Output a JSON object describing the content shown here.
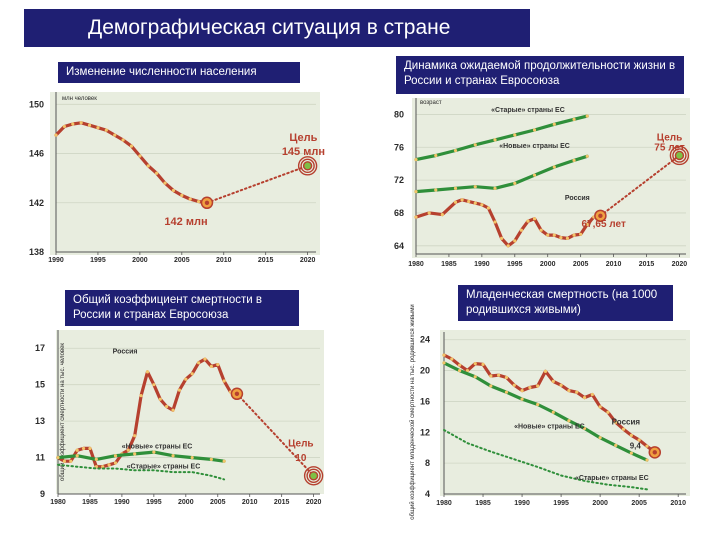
{
  "title": "Демографическая ситуация в стране",
  "colors": {
    "red": "#b6402f",
    "green": "#2f8f3a",
    "navy": "#1f1f73",
    "panel": "#e8eddf",
    "dotted": "#b6402f"
  },
  "chart_data": [
    {
      "type": "line",
      "caption": "Изменение численности населения",
      "ylabel": "млн человек",
      "ylim": [
        138,
        151
      ],
      "y_ticks": [
        "150",
        "146",
        "142",
        "138"
      ],
      "x_ticks": [
        "1990",
        "1995",
        "2000",
        "2005",
        "2010",
        "2015",
        "2020"
      ],
      "xlim": [
        1990,
        2021
      ],
      "series": [
        {
          "color": "red",
          "style": "solid",
          "x": [
            1990,
            1991,
            1992,
            1993,
            1994,
            1995,
            1996,
            1997,
            1998,
            1999,
            2000,
            2001,
            2002,
            2003,
            2004,
            2005,
            2006,
            2007,
            2008
          ],
          "y": [
            147.5,
            148.2,
            148.4,
            148.5,
            148.3,
            148.1,
            147.9,
            147.5,
            147.1,
            146.6,
            145.8,
            145.0,
            144.4,
            143.6,
            143.0,
            142.6,
            142.3,
            142.1,
            142.0
          ]
        },
        {
          "color": "red",
          "style": "dotted",
          "x": [
            2008,
            2020
          ],
          "y": [
            142.0,
            145.0
          ]
        }
      ],
      "annotations": [
        {
          "text": "Цель",
          "x": 2019.5,
          "y": 147.0,
          "size": 11
        },
        {
          "text": "145 млн",
          "x": 2019.5,
          "y": 145.9,
          "size": 11
        },
        {
          "text": "142 млн",
          "x": 2005.5,
          "y": 140.2,
          "size": 11
        }
      ]
    },
    {
      "type": "line",
      "caption": "Динамика ожидаемой продолжительности жизни в России и странах Евросоюза",
      "ylabel": "возраст",
      "ylim": [
        63,
        82
      ],
      "y_ticks": [
        "80",
        "76",
        "72",
        "68",
        "64"
      ],
      "x_ticks": [
        "1980",
        "1985",
        "1990",
        "1995",
        "2000",
        "2005",
        "2010",
        "2015",
        "2020"
      ],
      "xlim": [
        1980,
        2021
      ],
      "series": [
        {
          "name": "«Старые» страны ЕС",
          "color": "green",
          "style": "solid",
          "x": [
            1980,
            1983,
            1986,
            1989,
            1992,
            1995,
            1998,
            2001,
            2004,
            2006
          ],
          "y": [
            74.5,
            75.0,
            75.6,
            76.3,
            76.9,
            77.5,
            78.1,
            78.8,
            79.4,
            79.8
          ]
        },
        {
          "name": "«Новые» страны ЕС",
          "color": "green",
          "style": "solid",
          "x": [
            1980,
            1983,
            1986,
            1989,
            1992,
            1995,
            1998,
            2001,
            2004,
            2006
          ],
          "y": [
            70.6,
            70.8,
            71.0,
            71.2,
            71.0,
            71.6,
            72.6,
            73.6,
            74.4,
            74.9
          ]
        },
        {
          "name": "Россия",
          "color": "red",
          "style": "solid",
          "x": [
            1980,
            1982,
            1984,
            1986,
            1987,
            1988,
            1989,
            1990,
            1991,
            1992,
            1993,
            1994,
            1995,
            1996,
            1997,
            1998,
            1999,
            2000,
            2001,
            2002,
            2003,
            2004,
            2005,
            2006,
            2007,
            2008
          ],
          "y": [
            67.5,
            68.0,
            67.8,
            69.3,
            69.6,
            69.4,
            69.2,
            69.0,
            68.6,
            66.9,
            64.9,
            64.0,
            64.6,
            65.9,
            67.0,
            67.3,
            65.9,
            65.3,
            65.3,
            65.0,
            64.9,
            65.3,
            65.4,
            66.6,
            67.5,
            67.65
          ]
        },
        {
          "color": "red",
          "style": "dotted",
          "x": [
            2008,
            2020
          ],
          "y": [
            67.65,
            75
          ]
        }
      ],
      "annotations": [
        {
          "text": "«Старые» страны ЕС",
          "x": 1997,
          "y": 80.3,
          "size": 7
        },
        {
          "text": "«Новые» страны ЕС",
          "x": 1998,
          "y": 75.9,
          "size": 7
        },
        {
          "text": "Россия",
          "x": 2004.5,
          "y": 69.6,
          "size": 7
        },
        {
          "text": "Цель",
          "x": 2018.5,
          "y": 76.8,
          "size": 10
        },
        {
          "text": "75 лет",
          "x": 2018.5,
          "y": 75.6,
          "size": 10
        },
        {
          "text": "67,65 лет",
          "x": 2008.5,
          "y": 66.3,
          "size": 10
        }
      ]
    },
    {
      "type": "line",
      "caption": "Общий коэффициент смертности в России и странах Евросоюза",
      "ylabel": "общий коэффициент смертности на тыс. человек",
      "ylim": [
        9,
        18
      ],
      "y_ticks": [
        "17",
        "15",
        "13",
        "11",
        "9"
      ],
      "x_ticks": [
        "1980",
        "1985",
        "1990",
        "1995",
        "2000",
        "2005",
        "2010",
        "2015",
        "2020"
      ],
      "xlim": [
        1980,
        2021
      ],
      "series": [
        {
          "name": "Россия",
          "color": "red",
          "style": "solid",
          "x": [
            1980,
            1981,
            1982,
            1983,
            1984,
            1985,
            1986,
            1987,
            1988,
            1989,
            1990,
            1991,
            1992,
            1993,
            1994,
            1995,
            1996,
            1997,
            1998,
            1999,
            2000,
            2001,
            2002,
            2003,
            2004,
            2005,
            2006,
            2007,
            2008
          ],
          "y": [
            11.0,
            10.8,
            10.8,
            11.4,
            11.5,
            11.5,
            10.5,
            10.5,
            10.6,
            10.7,
            11.2,
            11.4,
            12.2,
            14.4,
            15.7,
            15.0,
            14.2,
            13.8,
            13.6,
            14.7,
            15.3,
            15.6,
            16.2,
            16.4,
            16.0,
            16.1,
            15.2,
            14.6,
            14.5
          ]
        },
        {
          "name": "«Новые» страны ЕС",
          "color": "green",
          "style": "solid",
          "x": [
            1980,
            1983,
            1986,
            1989,
            1992,
            1995,
            1998,
            2001,
            2004,
            2006
          ],
          "y": [
            11.0,
            11.1,
            10.9,
            11.1,
            11.2,
            11.3,
            11.1,
            11.0,
            10.9,
            10.8
          ]
        },
        {
          "name": "«Старые» страны ЕС",
          "color": "green",
          "style": "dotted",
          "x": [
            1980,
            1983,
            1986,
            1989,
            1992,
            1995,
            1998,
            2001,
            2004,
            2006
          ],
          "y": [
            10.6,
            10.5,
            10.4,
            10.4,
            10.3,
            10.3,
            10.2,
            10.2,
            10.0,
            9.8
          ]
        },
        {
          "color": "red",
          "style": "dotted",
          "x": [
            2008,
            2020
          ],
          "y": [
            14.5,
            10
          ]
        }
      ],
      "annotations": [
        {
          "text": "Россия",
          "x": 1990.5,
          "y": 16.7,
          "size": 7
        },
        {
          "text": "«Новые» страны ЕС",
          "x": 1995.5,
          "y": 11.5,
          "size": 7
        },
        {
          "text": "«Старые» страны ЕС",
          "x": 1996.5,
          "y": 10.4,
          "size": 7
        },
        {
          "text": "Цель",
          "x": 2018,
          "y": 11.6,
          "size": 10
        },
        {
          "text": "10",
          "x": 2018,
          "y": 10.8,
          "size": 10
        }
      ]
    },
    {
      "type": "line",
      "caption": "Младенческая смертность (на 1000 родившихся живыми)",
      "ylabel": "общий коэффициент младенческой смертности на тыс. родившихся живыми",
      "ylim": [
        4,
        25
      ],
      "y_ticks": [
        "24",
        "20",
        "16",
        "12",
        "8",
        "4"
      ],
      "x_ticks": [
        "1980",
        "1985",
        "1990",
        "1995",
        "2000",
        "2005",
        "2010"
      ],
      "xlim": [
        1980,
        2011
      ],
      "series": [
        {
          "name": "Россия",
          "color": "red",
          "style": "solid",
          "x": [
            1980,
            1981,
            1982,
            1983,
            1984,
            1985,
            1986,
            1987,
            1988,
            1989,
            1990,
            1991,
            1992,
            1993,
            1994,
            1995,
            1996,
            1997,
            1998,
            1999,
            2000,
            2001,
            2002,
            2003,
            2004,
            2005,
            2006,
            2007
          ],
          "y": [
            22.0,
            21.5,
            20.7,
            20.0,
            20.9,
            20.8,
            19.3,
            19.4,
            19.1,
            18.1,
            17.4,
            17.8,
            18.0,
            19.9,
            18.6,
            18.1,
            17.4,
            17.2,
            16.5,
            16.9,
            15.3,
            14.6,
            13.3,
            12.4,
            11.6,
            11.0,
            10.2,
            9.4
          ]
        },
        {
          "name": "«Новые» страны ЕС",
          "color": "green",
          "style": "solid",
          "x": [
            1980,
            1982,
            1984,
            1986,
            1988,
            1990,
            1992,
            1994,
            1996,
            1998,
            2000,
            2002,
            2004,
            2006
          ],
          "y": [
            21.0,
            20.0,
            19.2,
            18.0,
            17.2,
            16.3,
            15.6,
            14.6,
            13.5,
            12.5,
            11.3,
            10.3,
            9.3,
            8.4
          ]
        },
        {
          "name": "«Старые» страны ЕС",
          "color": "green",
          "style": "dotted",
          "x": [
            1980,
            1983,
            1986,
            1989,
            1992,
            1995,
            1998,
            2001,
            2004,
            2006
          ],
          "y": [
            12.3,
            10.6,
            9.5,
            8.5,
            7.5,
            6.4,
            5.7,
            5.2,
            4.9,
            4.6
          ]
        }
      ],
      "annotations": [
        {
          "text": "Россия",
          "x": 2003.3,
          "y": 13.0,
          "size": 8
        },
        {
          "text": "9,4",
          "x": 2004.5,
          "y": 9.9,
          "size": 8
        },
        {
          "text": "«Новые» страны ЕС",
          "x": 1993.5,
          "y": 12.5,
          "size": 7
        },
        {
          "text": "«Старые» страны ЕС",
          "x": 2001.5,
          "y": 5.8,
          "size": 7
        }
      ]
    }
  ]
}
